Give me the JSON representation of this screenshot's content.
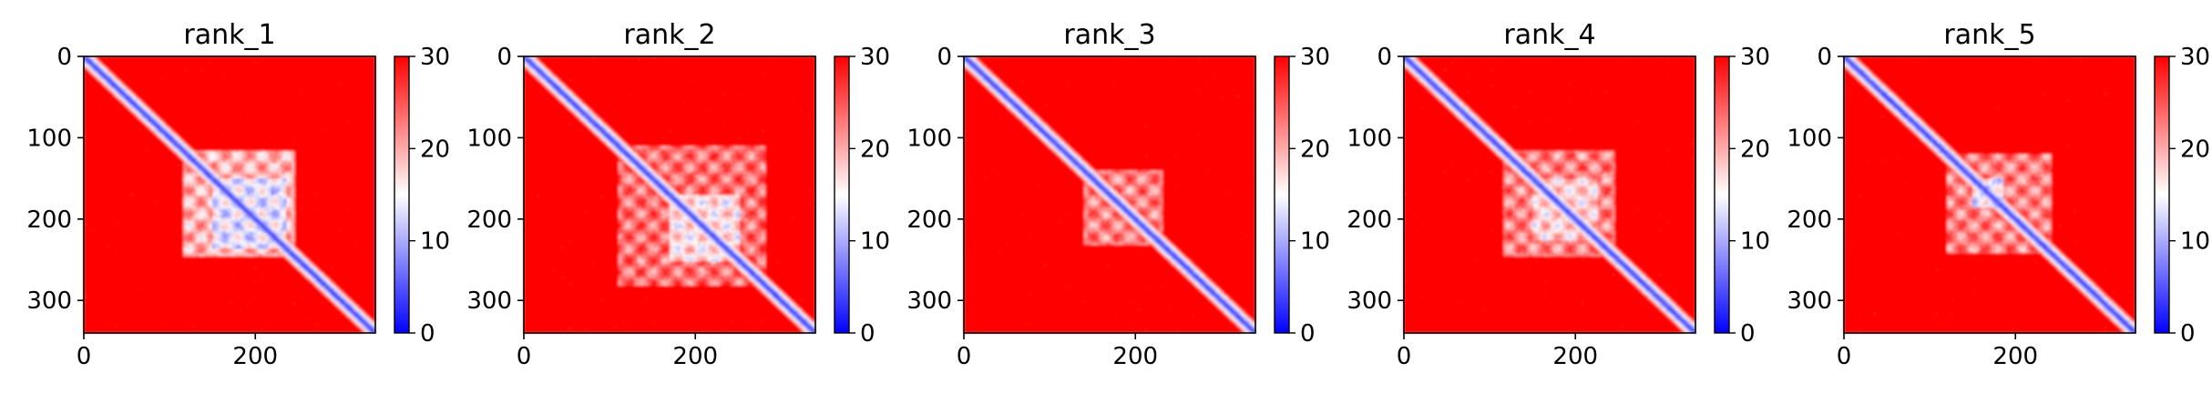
{
  "chart_data": [
    {
      "type": "heatmap",
      "title": "rank_1",
      "x_ticks": [
        0,
        200
      ],
      "y_ticks": [
        0,
        100,
        200,
        300
      ],
      "xlim": [
        0,
        340
      ],
      "ylim": [
        340,
        0
      ],
      "colorbar": {
        "min": 0,
        "max": 30,
        "ticks": [
          0,
          10,
          20,
          30
        ],
        "colormap": "bwr"
      },
      "matrix_size": 340,
      "low_distance_regions": [
        {
          "type": "diagonal",
          "from": 0,
          "to": 340,
          "value": 1
        },
        {
          "type": "block",
          "x": [
            115,
            245
          ],
          "y": [
            115,
            245
          ],
          "value": 12
        },
        {
          "type": "block",
          "x": [
            150,
            235
          ],
          "y": [
            150,
            235
          ],
          "value": 6
        }
      ]
    },
    {
      "type": "heatmap",
      "title": "rank_2",
      "x_ticks": [
        0,
        200
      ],
      "y_ticks": [
        0,
        100,
        200,
        300
      ],
      "xlim": [
        0,
        340
      ],
      "ylim": [
        340,
        0
      ],
      "colorbar": {
        "min": 0,
        "max": 30,
        "ticks": [
          0,
          10,
          20,
          30
        ],
        "colormap": "bwr"
      },
      "matrix_size": 340,
      "low_distance_regions": [
        {
          "type": "diagonal",
          "from": 0,
          "to": 340,
          "value": 1
        },
        {
          "type": "block",
          "x": [
            110,
            280
          ],
          "y": [
            110,
            280
          ],
          "value": 16
        },
        {
          "type": "block",
          "x": [
            170,
            250
          ],
          "y": [
            170,
            250
          ],
          "value": 9
        }
      ]
    },
    {
      "type": "heatmap",
      "title": "rank_3",
      "x_ticks": [
        0,
        200
      ],
      "y_ticks": [
        0,
        100,
        200,
        300
      ],
      "xlim": [
        0,
        340
      ],
      "ylim": [
        340,
        0
      ],
      "colorbar": {
        "min": 0,
        "max": 30,
        "ticks": [
          0,
          10,
          20,
          30
        ],
        "colormap": "bwr"
      },
      "matrix_size": 340,
      "low_distance_regions": [
        {
          "type": "diagonal",
          "from": 0,
          "to": 340,
          "value": 1
        },
        {
          "type": "block",
          "x": [
            140,
            230
          ],
          "y": [
            140,
            230
          ],
          "value": 15
        }
      ]
    },
    {
      "type": "heatmap",
      "title": "rank_4",
      "x_ticks": [
        0,
        200
      ],
      "y_ticks": [
        0,
        100,
        200,
        300
      ],
      "xlim": [
        0,
        340
      ],
      "ylim": [
        340,
        0
      ],
      "colorbar": {
        "min": 0,
        "max": 30,
        "ticks": [
          0,
          10,
          20,
          30
        ],
        "colormap": "bwr"
      },
      "matrix_size": 340,
      "low_distance_regions": [
        {
          "type": "diagonal",
          "from": 0,
          "to": 340,
          "value": 1
        },
        {
          "type": "block",
          "x": [
            115,
            245
          ],
          "y": [
            115,
            245
          ],
          "value": 15
        },
        {
          "type": "block",
          "x": [
            150,
            225
          ],
          "y": [
            150,
            225
          ],
          "value": 10
        }
      ]
    },
    {
      "type": "heatmap",
      "title": "rank_5",
      "x_ticks": [
        0,
        200
      ],
      "y_ticks": [
        0,
        100,
        200,
        300
      ],
      "xlim": [
        0,
        340
      ],
      "ylim": [
        340,
        0
      ],
      "colorbar": {
        "min": 0,
        "max": 30,
        "ticks": [
          0,
          10,
          20,
          30
        ],
        "colormap": "bwr"
      },
      "matrix_size": 340,
      "low_distance_regions": [
        {
          "type": "diagonal",
          "from": 0,
          "to": 340,
          "value": 1
        },
        {
          "type": "block",
          "x": [
            120,
            240
          ],
          "y": [
            120,
            240
          ],
          "value": 15
        },
        {
          "type": "block",
          "x": [
            150,
            185
          ],
          "y": [
            150,
            185
          ],
          "value": 6
        }
      ]
    }
  ]
}
